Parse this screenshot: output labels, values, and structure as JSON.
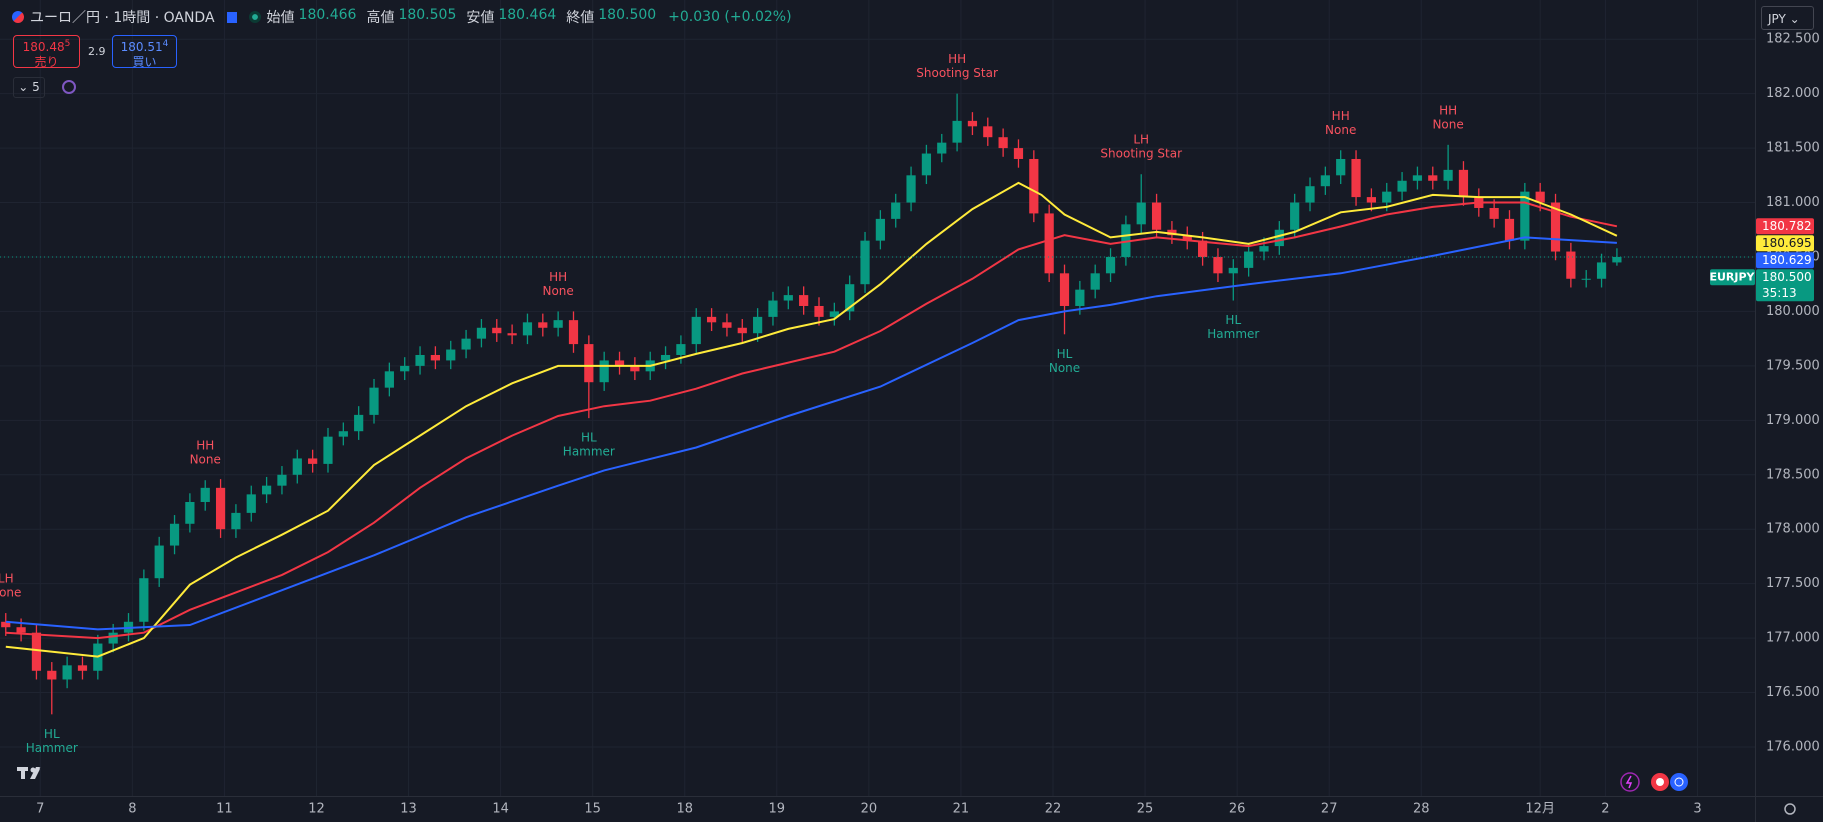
{
  "toolbar": {
    "symbol": "ユーロ／円 · 1時間 · OANDA",
    "ohlc": [
      {
        "label": "始値",
        "value": "180.466"
      },
      {
        "label": "高値",
        "value": "180.505"
      },
      {
        "label": "安値",
        "value": "180.464"
      },
      {
        "label": "終値",
        "value": "180.500"
      }
    ],
    "change": "+0.030 (+0.02%)",
    "sell": {
      "price": "180.48",
      "pip": "5",
      "label": "売り"
    },
    "spread": "2.9",
    "buy": {
      "price": "180.51",
      "pip": "4",
      "label": "買い"
    },
    "indicator_count": "5",
    "currency": "JPY",
    "symbol_tag": "EURJPY",
    "countdown": "35:13"
  },
  "chart_data": {
    "type": "candlestick",
    "xlim": [
      -1.5,
      456
    ],
    "ylim": [
      175.55,
      182.86
    ],
    "grid": true,
    "yticks": [
      {
        "value": 176,
        "label": "176.000"
      },
      {
        "value": 176.5,
        "label": "176.500"
      },
      {
        "value": 177,
        "label": "177.000"
      },
      {
        "value": 177.5,
        "label": "177.500"
      },
      {
        "value": 178,
        "label": "178.000"
      },
      {
        "value": 178.5,
        "label": "178.500"
      },
      {
        "value": 179,
        "label": "179.000"
      },
      {
        "value": 179.5,
        "label": "179.500"
      },
      {
        "value": 180,
        "label": "180.000"
      },
      {
        "value": 180.5,
        "label": "180.500"
      },
      {
        "value": 181,
        "label": "181.000"
      },
      {
        "value": 181.5,
        "label": "181.500"
      },
      {
        "value": 182,
        "label": "182.000"
      },
      {
        "value": 182.5,
        "label": "182.500"
      }
    ],
    "xticks": [
      {
        "value": 9,
        "label": "7"
      },
      {
        "value": 33,
        "label": "8"
      },
      {
        "value": 57,
        "label": "11"
      },
      {
        "value": 81,
        "label": "12"
      },
      {
        "value": 105,
        "label": "13"
      },
      {
        "value": 129,
        "label": "14"
      },
      {
        "value": 153,
        "label": "15"
      },
      {
        "value": 177,
        "label": "18"
      },
      {
        "value": 201,
        "label": "19"
      },
      {
        "value": 225,
        "label": "20"
      },
      {
        "value": 249,
        "label": "21"
      },
      {
        "value": 273,
        "label": "22"
      },
      {
        "value": 297,
        "label": "25"
      },
      {
        "value": 321,
        "label": "26"
      },
      {
        "value": 345,
        "label": "27"
      },
      {
        "value": 369,
        "label": "28"
      },
      {
        "value": 400,
        "label": "12月"
      },
      {
        "value": 417,
        "label": "2"
      },
      {
        "value": 441,
        "label": "3"
      }
    ],
    "candles": {
      "up_color": "#089981",
      "down_color": "#f23645",
      "last_label": "180.500",
      "x": [
        0,
        4,
        8,
        12,
        16,
        20,
        24,
        28,
        32,
        36,
        40,
        44,
        48,
        52,
        56,
        60,
        64,
        68,
        72,
        76,
        80,
        84,
        88,
        92,
        96,
        100,
        104,
        108,
        112,
        116,
        120,
        124,
        128,
        132,
        136,
        140,
        144,
        148,
        152,
        156,
        160,
        164,
        168,
        172,
        176,
        180,
        184,
        188,
        192,
        196,
        200,
        204,
        208,
        212,
        216,
        220,
        224,
        228,
        232,
        236,
        240,
        244,
        248,
        252,
        256,
        260,
        264,
        268,
        272,
        276,
        280,
        284,
        288,
        292,
        296,
        300,
        304,
        308,
        312,
        316,
        320,
        324,
        328,
        332,
        336,
        340,
        344,
        348,
        352,
        356,
        360,
        364,
        368,
        372,
        376,
        380,
        384,
        388,
        392,
        396,
        400,
        404,
        408,
        412,
        416,
        420
      ],
      "open": [
        177.15,
        177.1,
        177.05,
        176.7,
        176.62,
        176.75,
        176.7,
        176.95,
        177.05,
        177.15,
        177.55,
        177.85,
        178.05,
        178.25,
        178.38,
        178.0,
        178.15,
        178.32,
        178.4,
        178.5,
        178.65,
        178.6,
        178.85,
        178.9,
        179.05,
        179.3,
        179.45,
        179.5,
        179.6,
        179.55,
        179.65,
        179.75,
        179.85,
        179.8,
        179.78,
        179.9,
        179.85,
        179.92,
        179.7,
        179.35,
        179.55,
        179.5,
        179.45,
        179.55,
        179.6,
        179.7,
        179.95,
        179.9,
        179.85,
        179.8,
        179.95,
        180.1,
        180.15,
        180.05,
        179.95,
        180.0,
        180.25,
        180.65,
        180.85,
        181.0,
        181.25,
        181.45,
        181.55,
        181.75,
        181.7,
        181.6,
        181.5,
        181.4,
        180.9,
        180.35,
        180.05,
        180.2,
        180.35,
        180.5,
        180.8,
        181.0,
        180.75,
        180.7,
        180.65,
        180.5,
        180.35,
        180.4,
        180.55,
        180.6,
        180.75,
        181.0,
        181.15,
        181.25,
        181.4,
        181.05,
        181.0,
        181.1,
        181.2,
        181.25,
        181.2,
        181.3,
        181.05,
        180.95,
        180.85,
        180.65,
        181.1,
        181.0,
        180.55,
        180.3,
        180.3,
        180.45
      ],
      "high": [
        177.23,
        177.18,
        177.13,
        176.78,
        176.83,
        176.83,
        177.03,
        177.13,
        177.23,
        177.63,
        177.93,
        178.13,
        178.33,
        178.45,
        178.46,
        178.23,
        178.4,
        178.48,
        178.58,
        178.73,
        178.73,
        178.93,
        178.98,
        179.13,
        179.38,
        179.53,
        179.58,
        179.68,
        179.68,
        179.73,
        179.83,
        179.93,
        179.93,
        179.88,
        179.98,
        179.98,
        180.0,
        180.0,
        179.78,
        179.63,
        179.63,
        179.58,
        179.63,
        179.68,
        179.78,
        180.03,
        180.03,
        179.98,
        179.93,
        180.03,
        180.18,
        180.23,
        180.23,
        180.13,
        180.08,
        180.33,
        180.73,
        180.93,
        181.08,
        181.33,
        181.53,
        181.63,
        182.0,
        181.83,
        181.78,
        181.68,
        181.58,
        181.48,
        180.98,
        180.43,
        180.28,
        180.43,
        180.58,
        180.88,
        181.26,
        181.08,
        180.83,
        180.78,
        180.73,
        180.58,
        180.48,
        180.63,
        180.68,
        180.83,
        181.08,
        181.23,
        181.33,
        181.48,
        181.48,
        181.13,
        181.18,
        181.28,
        181.33,
        181.33,
        181.53,
        181.38,
        181.13,
        181.03,
        180.93,
        181.18,
        181.18,
        181.08,
        180.63,
        180.38,
        180.53,
        180.58
      ],
      "low": [
        177.02,
        176.97,
        176.62,
        176.3,
        176.54,
        176.62,
        176.62,
        176.87,
        176.97,
        177.07,
        177.47,
        177.77,
        177.97,
        178.17,
        177.92,
        177.92,
        178.07,
        178.24,
        178.32,
        178.42,
        178.52,
        178.52,
        178.77,
        178.82,
        178.97,
        179.22,
        179.37,
        179.42,
        179.47,
        179.47,
        179.57,
        179.67,
        179.72,
        179.7,
        179.7,
        179.77,
        179.77,
        179.62,
        179.02,
        179.27,
        179.42,
        179.37,
        179.37,
        179.47,
        179.52,
        179.62,
        179.82,
        179.77,
        179.72,
        179.72,
        179.87,
        180.02,
        179.97,
        179.87,
        179.87,
        179.92,
        180.17,
        180.57,
        180.77,
        180.92,
        181.17,
        181.37,
        181.47,
        181.62,
        181.52,
        181.42,
        181.32,
        180.82,
        180.27,
        179.79,
        179.97,
        180.12,
        180.27,
        180.42,
        180.72,
        180.67,
        180.62,
        180.57,
        180.42,
        180.27,
        180.1,
        180.32,
        180.47,
        180.52,
        180.67,
        180.92,
        181.07,
        181.17,
        180.97,
        180.92,
        180.92,
        181.02,
        181.12,
        181.12,
        181.12,
        180.97,
        180.87,
        180.77,
        180.57,
        180.57,
        180.92,
        180.47,
        180.22,
        180.22,
        180.22,
        180.42
      ],
      "close": [
        177.1,
        177.05,
        176.7,
        176.62,
        176.75,
        176.7,
        176.95,
        177.05,
        177.15,
        177.55,
        177.85,
        178.05,
        178.25,
        178.38,
        178.0,
        178.15,
        178.32,
        178.4,
        178.5,
        178.65,
        178.6,
        178.85,
        178.9,
        179.05,
        179.3,
        179.45,
        179.5,
        179.6,
        179.55,
        179.65,
        179.75,
        179.85,
        179.8,
        179.78,
        179.9,
        179.85,
        179.92,
        179.7,
        179.35,
        179.55,
        179.5,
        179.45,
        179.55,
        179.6,
        179.7,
        179.95,
        179.9,
        179.85,
        179.8,
        179.95,
        180.1,
        180.15,
        180.05,
        179.95,
        180.0,
        180.25,
        180.65,
        180.85,
        181.0,
        181.25,
        181.45,
        181.55,
        181.75,
        181.7,
        181.6,
        181.5,
        181.4,
        180.9,
        180.35,
        180.05,
        180.2,
        180.35,
        180.5,
        180.8,
        181.0,
        180.75,
        180.7,
        180.65,
        180.5,
        180.35,
        180.4,
        180.55,
        180.6,
        180.75,
        181.0,
        181.15,
        181.25,
        181.4,
        181.05,
        181.0,
        181.1,
        181.2,
        181.25,
        181.2,
        181.3,
        181.05,
        180.95,
        180.85,
        180.65,
        181.1,
        181.0,
        180.55,
        180.3,
        180.3,
        180.45,
        180.5
      ]
    },
    "series": [
      {
        "color": "#f23645",
        "x": [
          0,
          24,
          36,
          48,
          60,
          72,
          84,
          96,
          108,
          120,
          132,
          144,
          156,
          168,
          180,
          192,
          204,
          216,
          228,
          240,
          252,
          264,
          276,
          288,
          300,
          312,
          324,
          336,
          348,
          360,
          372,
          384,
          396,
          408,
          420
        ],
        "values": [
          177.05,
          177.0,
          177.05,
          177.26,
          177.42,
          177.58,
          177.79,
          178.06,
          178.38,
          178.65,
          178.86,
          179.04,
          179.13,
          179.18,
          179.29,
          179.43,
          179.53,
          179.63,
          179.82,
          180.07,
          180.3,
          180.57,
          180.7,
          180.62,
          180.68,
          180.64,
          180.6,
          180.68,
          180.78,
          180.89,
          180.96,
          181.0,
          181.0,
          180.87,
          180.782
        ]
      },
      {
        "color": "#ffeb3b",
        "x": [
          0,
          24,
          36,
          48,
          60,
          72,
          84,
          96,
          108,
          120,
          132,
          144,
          156,
          168,
          180,
          192,
          204,
          216,
          228,
          240,
          252,
          264,
          270,
          276,
          288,
          300,
          312,
          324,
          336,
          348,
          360,
          372,
          384,
          396,
          408,
          420
        ],
        "values": [
          176.92,
          176.83,
          177.0,
          177.49,
          177.74,
          177.95,
          178.17,
          178.59,
          178.86,
          179.13,
          179.34,
          179.5,
          179.5,
          179.5,
          179.61,
          179.71,
          179.84,
          179.93,
          180.25,
          180.62,
          180.94,
          181.18,
          181.07,
          180.89,
          180.68,
          180.73,
          180.68,
          180.62,
          180.73,
          180.91,
          180.96,
          181.07,
          181.05,
          181.05,
          180.89,
          180.695
        ]
      },
      {
        "color": "#2962ff",
        "x": [
          0,
          24,
          48,
          72,
          96,
          120,
          144,
          156,
          180,
          204,
          228,
          252,
          264,
          276,
          288,
          300,
          324,
          348,
          372,
          396,
          420
        ],
        "values": [
          177.15,
          177.08,
          177.12,
          177.44,
          177.76,
          178.11,
          178.4,
          178.54,
          178.75,
          179.04,
          179.31,
          179.71,
          179.92,
          180.0,
          180.06,
          180.14,
          180.25,
          180.35,
          180.51,
          180.68,
          180.629
        ]
      }
    ],
    "annotations": [
      {
        "candle": 0,
        "side": "above",
        "color": "#f7525f",
        "lines": [
          "LH",
          "None"
        ]
      },
      {
        "candle": 3,
        "side": "below",
        "color": "#22ab94",
        "lines": [
          "HL",
          "Hammer"
        ]
      },
      {
        "candle": 13,
        "side": "above",
        "color": "#f7525f",
        "lines": [
          "HH",
          "None"
        ]
      },
      {
        "candle": 36,
        "side": "above",
        "color": "#f7525f",
        "lines": [
          "HH",
          "None"
        ]
      },
      {
        "candle": 38,
        "side": "below",
        "color": "#22ab94",
        "lines": [
          "HL",
          "Hammer"
        ]
      },
      {
        "candle": 62,
        "side": "above",
        "color": "#f7525f",
        "lines": [
          "HH",
          "Shooting Star"
        ]
      },
      {
        "candle": 69,
        "side": "below",
        "color": "#22ab94",
        "lines": [
          "HL",
          "None"
        ]
      },
      {
        "candle": 74,
        "side": "above",
        "color": "#f7525f",
        "lines": [
          "LH",
          "Shooting Star"
        ]
      },
      {
        "candle": 80,
        "side": "below",
        "color": "#22ab94",
        "lines": [
          "HL",
          "Hammer"
        ]
      },
      {
        "candle": 87,
        "side": "above",
        "color": "#f7525f",
        "lines": [
          "HH",
          "None"
        ]
      },
      {
        "candle": 94,
        "side": "above",
        "color": "#f7525f",
        "lines": [
          "HH",
          "None"
        ]
      }
    ]
  }
}
